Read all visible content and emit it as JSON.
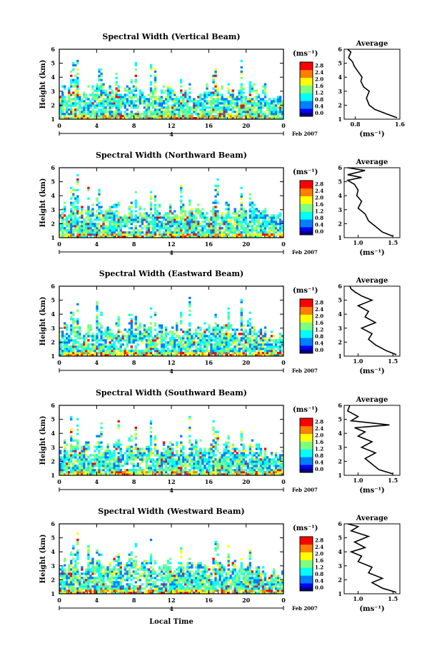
{
  "figure": {
    "date_label": "Feb 2007",
    "day_label": "4",
    "x_axis_label": "Local Time",
    "y_axis_label": "Height (km)",
    "unit_label": "(ms⁻¹)",
    "average_title": "Average",
    "average_xlabel": "(ms⁻¹)"
  },
  "colors": {
    "scale": [
      "#00007f",
      "#0000ff",
      "#007fff",
      "#00ffff",
      "#7fff7f",
      "#ffff00",
      "#ff7f00",
      "#ff0000",
      "#7f0000"
    ]
  },
  "chart_data": [
    {
      "type": "heatmap",
      "title": "Spectral Width (Vertical Beam)",
      "xlabel": "",
      "ylabel": "Height (km)",
      "xlim": [
        0,
        24
      ],
      "ylim": [
        1,
        6
      ],
      "xticks": [
        "0",
        "4",
        "8",
        "12",
        "16",
        "20",
        "0"
      ],
      "yticks": [
        "1",
        "2",
        "3",
        "4",
        "5",
        "6"
      ],
      "colorbar": {
        "ticks": [
          "0.0",
          "0.4",
          "0.8",
          "1.2",
          "1.6",
          "2.0",
          "2.4",
          "2.8"
        ],
        "range": [
          0,
          2.8
        ]
      },
      "seed": 11,
      "average": {
        "type": "line",
        "title": "Average",
        "xlim": [
          0.6,
          1.6
        ],
        "ylim": [
          1,
          6
        ],
        "xticks": [
          "0.8",
          "1.6"
        ],
        "x": [
          1.55,
          1.35,
          1.15,
          1.05,
          1.0,
          1.05,
          0.95,
          0.9,
          0.92,
          0.85,
          0.78,
          0.75,
          0.68,
          0.72,
          0.66
        ],
        "y": [
          1.1,
          1.4,
          1.7,
          2.0,
          2.5,
          3.0,
          3.3,
          3.7,
          4.0,
          4.4,
          4.8,
          5.1,
          5.4,
          5.8,
          6.0
        ]
      }
    },
    {
      "type": "heatmap",
      "title": "Spectral Width (Northward Beam)",
      "xlabel": "",
      "ylabel": "Height (km)",
      "xlim": [
        0,
        24
      ],
      "ylim": [
        1,
        6
      ],
      "xticks": [
        "0",
        "4",
        "8",
        "12",
        "16",
        "20",
        "0"
      ],
      "yticks": [
        "1",
        "2",
        "3",
        "4",
        "5",
        "6"
      ],
      "colorbar": {
        "ticks": [
          "0.0",
          "0.4",
          "0.8",
          "1.2",
          "1.6",
          "2.0",
          "2.4",
          "2.8"
        ],
        "range": [
          0,
          2.8
        ]
      },
      "seed": 23,
      "average": {
        "type": "line",
        "title": "Average",
        "xlim": [
          0.8,
          1.6
        ],
        "ylim": [
          1,
          6
        ],
        "xticks": [
          "1.0",
          "1.5"
        ],
        "x": [
          1.5,
          1.35,
          1.25,
          1.15,
          1.1,
          1.0,
          1.05,
          0.98,
          1.0,
          0.95,
          0.85,
          1.05,
          0.85,
          1.1,
          0.85
        ],
        "y": [
          1.1,
          1.4,
          1.8,
          2.2,
          2.7,
          3.1,
          3.6,
          4.0,
          4.4,
          4.8,
          5.1,
          5.3,
          5.5,
          5.8,
          6.0
        ]
      }
    },
    {
      "type": "heatmap",
      "title": "Spectral Width (Eastward Beam)",
      "xlabel": "",
      "ylabel": "Height (km)",
      "xlim": [
        0,
        24
      ],
      "ylim": [
        1,
        6
      ],
      "xticks": [
        "0",
        "4",
        "8",
        "12",
        "16",
        "20",
        "0"
      ],
      "yticks": [
        "1",
        "2",
        "3",
        "4",
        "5",
        "6"
      ],
      "colorbar": {
        "ticks": [
          "0.0",
          "0.4",
          "0.8",
          "1.2",
          "1.6",
          "2.0",
          "2.4",
          "2.8"
        ],
        "range": [
          0,
          2.8
        ]
      },
      "seed": 37,
      "average": {
        "type": "line",
        "title": "Average",
        "xlim": [
          0.8,
          1.6
        ],
        "ylim": [
          1,
          6
        ],
        "xticks": [
          "1.0",
          "1.5"
        ],
        "x": [
          1.55,
          1.4,
          1.25,
          1.15,
          1.2,
          1.05,
          1.25,
          1.1,
          1.15,
          1.0,
          1.2,
          1.05,
          0.95,
          0.9,
          0.88
        ],
        "y": [
          1.1,
          1.4,
          1.8,
          2.2,
          2.6,
          3.0,
          3.4,
          3.8,
          4.2,
          4.6,
          5.0,
          5.3,
          5.6,
          5.8,
          6.0
        ]
      }
    },
    {
      "type": "heatmap",
      "title": "Spectral Width (Southward Beam)",
      "xlabel": "",
      "ylabel": "Height (km)",
      "xlim": [
        0,
        24
      ],
      "ylim": [
        1,
        6
      ],
      "xticks": [
        "0",
        "4",
        "8",
        "12",
        "16",
        "20",
        "0"
      ],
      "yticks": [
        "1",
        "2",
        "3",
        "4",
        "5",
        "6"
      ],
      "colorbar": {
        "ticks": [
          "0.0",
          "0.4",
          "0.8",
          "1.2",
          "1.6",
          "2.0",
          "2.4",
          "2.8"
        ],
        "range": [
          0,
          2.8
        ]
      },
      "seed": 53,
      "average": {
        "type": "line",
        "title": "Average",
        "xlim": [
          0.8,
          1.6
        ],
        "ylim": [
          1,
          6
        ],
        "xticks": [
          "1.0",
          "1.5"
        ],
        "x": [
          1.5,
          1.3,
          1.2,
          1.1,
          1.25,
          1.05,
          1.2,
          1.0,
          1.1,
          0.95,
          1.45,
          0.9,
          1.0,
          0.85,
          0.88
        ],
        "y": [
          1.1,
          1.4,
          1.8,
          2.2,
          2.6,
          3.0,
          3.4,
          3.8,
          4.1,
          4.4,
          4.6,
          4.9,
          5.2,
          5.6,
          6.0
        ]
      }
    },
    {
      "type": "heatmap",
      "title": "Spectral Width (Westward Beam)",
      "xlabel": "Local Time",
      "ylabel": "Height (km)",
      "xlim": [
        0,
        24
      ],
      "ylim": [
        1,
        6
      ],
      "xticks": [
        "0",
        "4",
        "8",
        "12",
        "16",
        "20",
        "0"
      ],
      "yticks": [
        "1",
        "2",
        "3",
        "4",
        "5",
        "6"
      ],
      "colorbar": {
        "ticks": [
          "0.0",
          "0.4",
          "0.8",
          "1.2",
          "1.6",
          "2.0",
          "2.4",
          "2.8"
        ],
        "range": [
          0,
          2.8
        ]
      },
      "seed": 71,
      "average": {
        "type": "line",
        "title": "Average",
        "xlim": [
          0.8,
          1.6
        ],
        "ylim": [
          1,
          6
        ],
        "xticks": [
          "1.0",
          "1.5"
        ],
        "x": [
          1.55,
          1.35,
          1.2,
          1.35,
          1.15,
          1.2,
          1.0,
          1.05,
          0.9,
          1.1,
          0.95,
          1.15,
          0.9,
          1.0,
          0.85
        ],
        "y": [
          1.1,
          1.4,
          1.8,
          2.1,
          2.5,
          2.9,
          3.3,
          3.7,
          4.0,
          4.3,
          4.7,
          5.1,
          5.5,
          5.8,
          6.0
        ]
      }
    }
  ]
}
